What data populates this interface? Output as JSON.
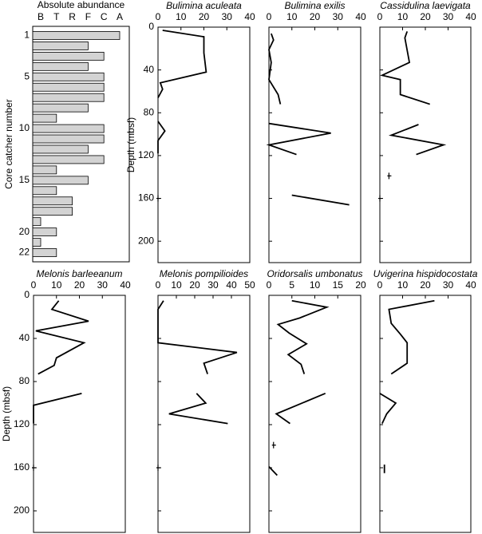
{
  "chart_data": [
    {
      "type": "abundance-bar",
      "title": "Absolute abundance",
      "ylabel": "Core catcher number",
      "levels": [
        "B",
        "T",
        "R",
        "F",
        "C",
        "A"
      ],
      "rows": [
        1,
        null,
        null,
        null,
        5,
        null,
        null,
        null,
        null,
        10,
        null,
        null,
        null,
        null,
        15,
        null,
        null,
        null,
        null,
        20,
        null,
        22
      ],
      "values": [
        "A",
        "F",
        "C",
        "F",
        "C",
        "C",
        "C",
        "F",
        "T",
        "C",
        "C",
        "F",
        "C",
        "T",
        "F",
        "T",
        "R",
        "R",
        "B",
        "T",
        "B",
        "T"
      ],
      "color": "#d3d3d3"
    },
    {
      "type": "profile",
      "title": "Bulimina aculeata",
      "ylabel": "Depth (mbsf)",
      "ytick_labels": true,
      "values": [
        2,
        20,
        20,
        21,
        1,
        2,
        0,
        null,
        0,
        3,
        0,
        0,
        null,
        0
      ],
      "depth": [
        3,
        9,
        24,
        42,
        52,
        58,
        66,
        null,
        88,
        97,
        106,
        118,
        null,
        160
      ],
      "xlim": [
        0,
        40
      ],
      "xticks": [
        0,
        10,
        20,
        30,
        40
      ],
      "ylim": [
        0,
        220
      ],
      "yticks": [
        0,
        40,
        80,
        120,
        160,
        200
      ],
      "inverted_y": true
    },
    {
      "type": "profile",
      "title": "Bulimina exilis",
      "ytick_labels": false,
      "values": [
        1,
        2,
        0,
        1,
        0,
        4,
        5,
        null,
        0,
        27,
        0,
        12,
        null,
        10,
        35
      ],
      "depth": [
        6,
        12,
        21,
        33,
        49,
        63,
        72,
        null,
        90,
        99,
        110,
        119,
        null,
        157,
        166
      ],
      "xlim": [
        0,
        40
      ],
      "xticks": [
        0,
        10,
        20,
        30,
        40
      ],
      "ylim": [
        0,
        220
      ],
      "yticks": [
        0,
        40,
        80,
        120,
        160,
        200
      ],
      "inverted_y": true
    },
    {
      "type": "profile",
      "title": "Cassidulina laevigata",
      "ytick_labels": false,
      "values": [
        12,
        11,
        13,
        1,
        9,
        9,
        22,
        null,
        17,
        5,
        28,
        16,
        null,
        4,
        null,
        0
      ],
      "depth": [
        4,
        10,
        33,
        45,
        49,
        63,
        72,
        null,
        91,
        101,
        110,
        119,
        null,
        139,
        null,
        160
      ],
      "xlim": [
        0,
        40
      ],
      "xticks": [
        0,
        10,
        20,
        30,
        40
      ],
      "ylim": [
        0,
        220
      ],
      "yticks": [
        0,
        40,
        80,
        120,
        160,
        200
      ],
      "inverted_y": true
    },
    {
      "type": "profile",
      "title": "Melonis barleeanum",
      "ylabel": "Depth (mbsf)",
      "ytick_labels": true,
      "values": [
        11,
        8,
        24,
        1,
        22,
        10,
        9,
        2,
        null,
        21,
        0,
        0,
        0,
        null,
        0
      ],
      "depth": [
        5,
        13,
        24,
        33,
        44,
        58,
        65,
        73,
        null,
        91,
        102,
        111,
        119,
        null,
        160
      ],
      "xlim": [
        0,
        40
      ],
      "xticks": [
        0,
        10,
        20,
        30,
        40
      ],
      "ylim": [
        0,
        220
      ],
      "yticks": [
        0,
        40,
        80,
        120,
        160,
        200
      ],
      "inverted_y": true
    },
    {
      "type": "profile",
      "title": "Melonis pompilioides",
      "ytick_labels": false,
      "values": [
        3,
        0,
        0,
        0,
        43,
        25,
        27,
        null,
        21,
        26,
        6,
        38,
        null,
        0
      ],
      "depth": [
        5,
        13,
        37,
        44,
        53,
        63,
        73,
        null,
        91,
        100,
        110,
        119,
        null,
        160
      ],
      "xlim": [
        0,
        50
      ],
      "xticks": [
        0,
        10,
        20,
        30,
        40,
        50
      ],
      "ylim": [
        0,
        220
      ],
      "yticks": [
        0,
        40,
        80,
        120,
        160,
        200
      ],
      "inverted_y": true
    },
    {
      "type": "profile",
      "title": "Oridorsalis umbonatus",
      "ytick_labels": false,
      "values": [
        5,
        12.6,
        6.7,
        2,
        4.4,
        8.2,
        4.2,
        7,
        7.7,
        null,
        12.3,
        1.6,
        4.6,
        null,
        1,
        null,
        0,
        1.8
      ],
      "depth": [
        5,
        11,
        21,
        27,
        35,
        45,
        55,
        64,
        73,
        null,
        91,
        110,
        119,
        null,
        139,
        null,
        159,
        167
      ],
      "xlim": [
        0,
        20
      ],
      "xticks": [
        0,
        5,
        10,
        15,
        20
      ],
      "ylim": [
        0,
        220
      ],
      "yticks": [
        0,
        40,
        80,
        120,
        160,
        200
      ],
      "inverted_y": true
    },
    {
      "type": "profile",
      "title": "Uvigerina hispidocostata",
      "ytick_labels": false,
      "values": [
        24,
        4,
        5,
        9,
        12,
        12,
        5,
        null,
        0,
        7,
        3,
        1,
        null,
        2,
        2
      ],
      "depth": [
        5,
        13,
        26,
        36,
        44,
        63,
        73,
        null,
        91,
        100,
        110,
        119,
        null,
        157,
        165
      ],
      "xlim": [
        0,
        40
      ],
      "xticks": [
        0,
        10,
        20,
        30,
        40
      ],
      "ylim": [
        0,
        220
      ],
      "yticks": [
        0,
        40,
        80,
        120,
        160,
        200
      ],
      "inverted_y": true
    }
  ]
}
